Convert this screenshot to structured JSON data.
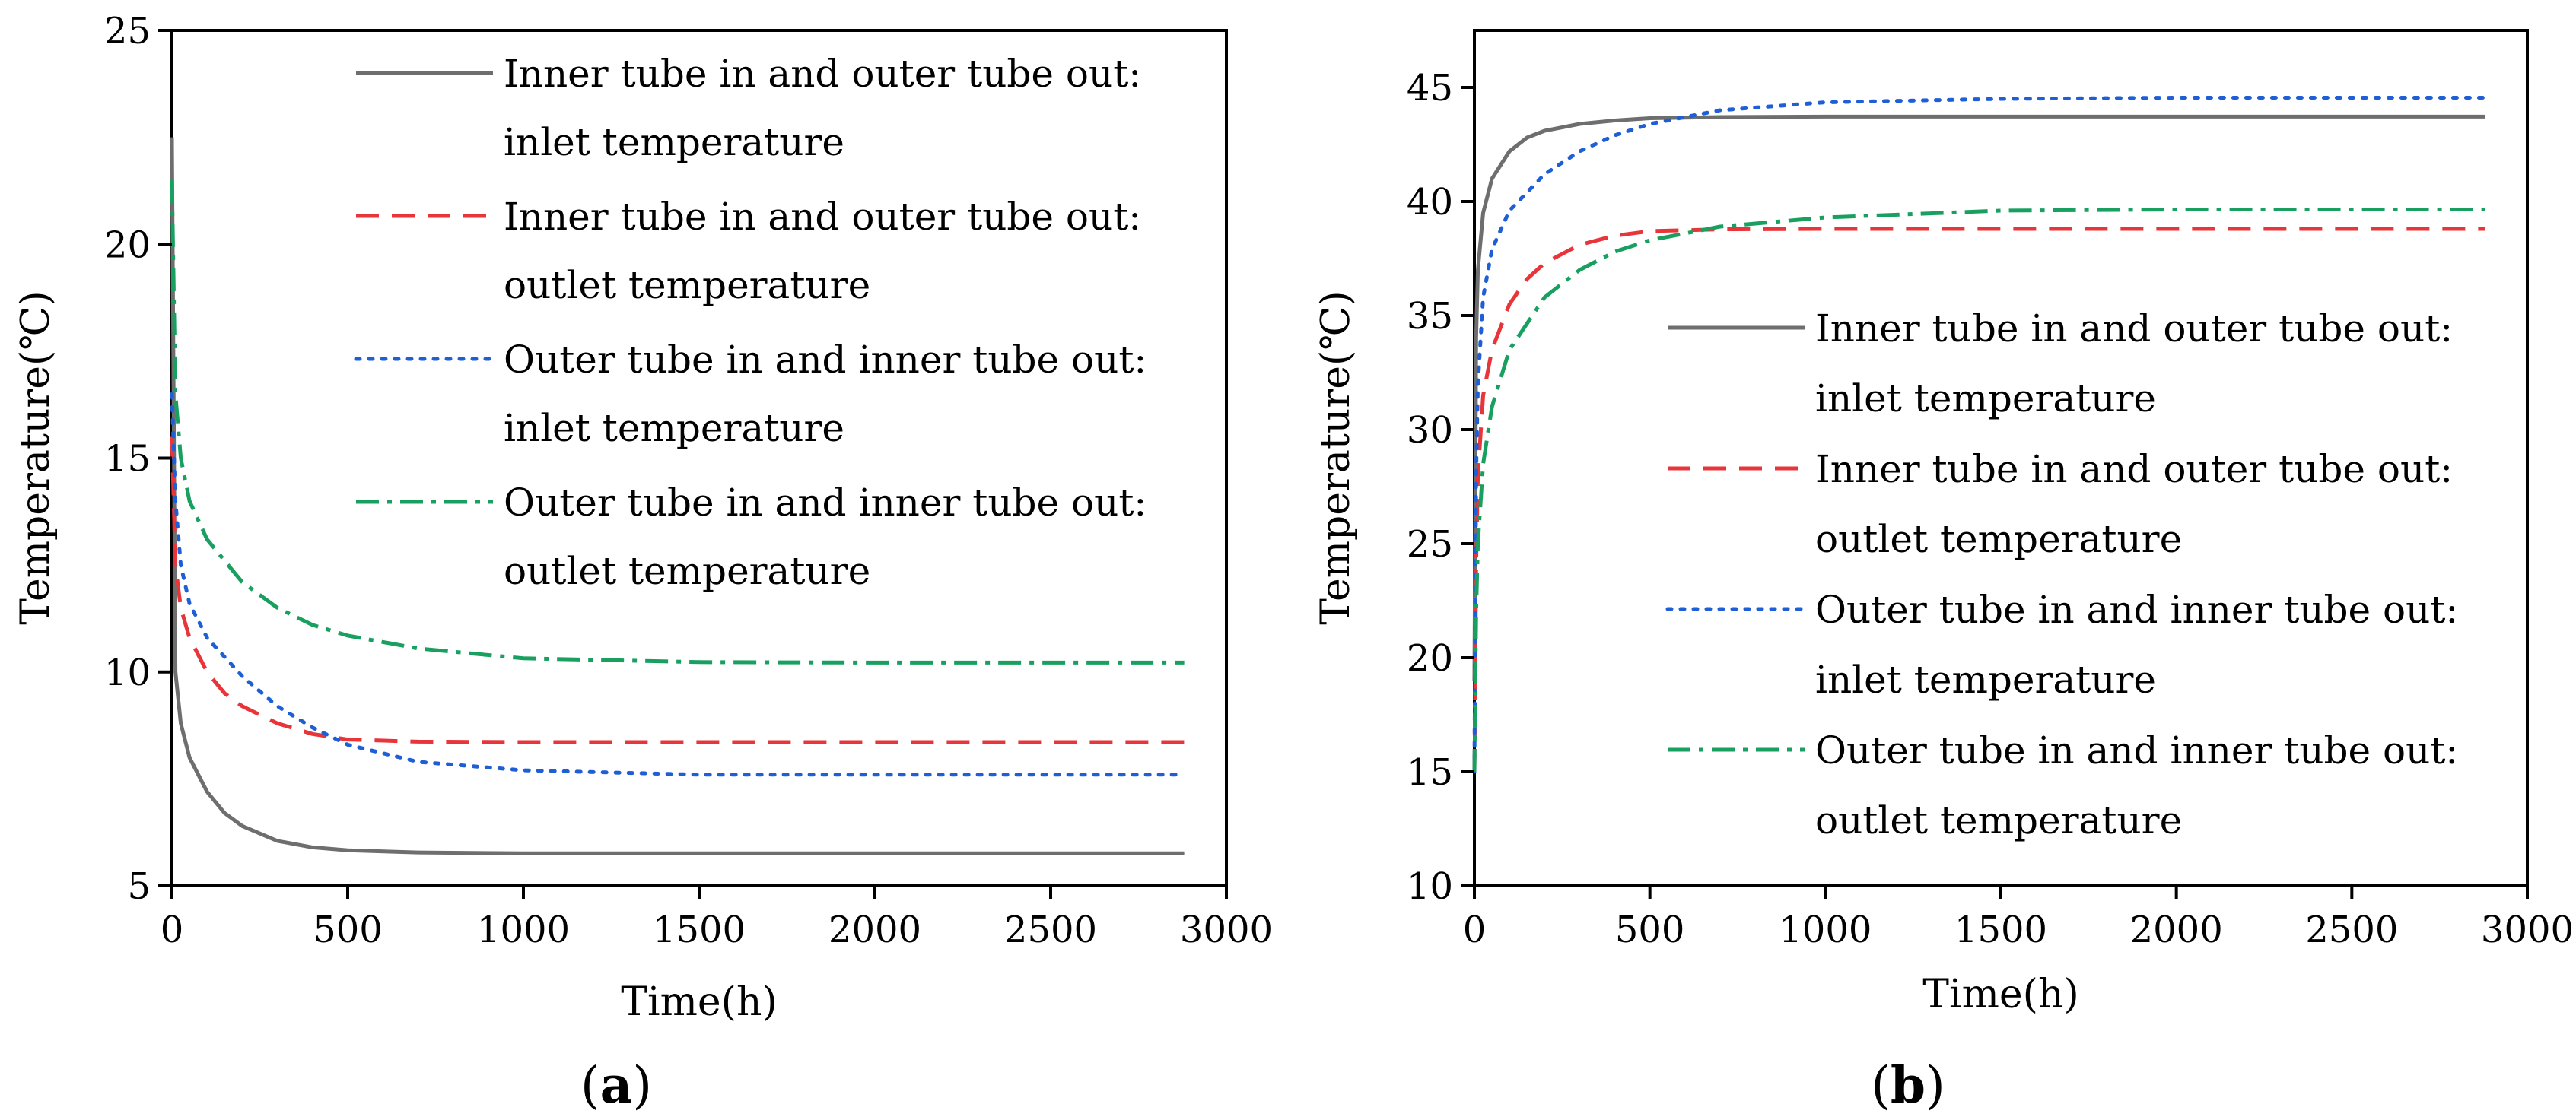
{
  "chart_data": [
    {
      "id": "a",
      "type": "line",
      "panel_label": "a",
      "xlabel": "Time(h)",
      "ylabel": "Temperature(℃)",
      "xlim": [
        0,
        3000
      ],
      "ylim": [
        5,
        25
      ],
      "xticks": [
        0,
        500,
        1000,
        1500,
        2000,
        2500,
        3000
      ],
      "yticks": [
        5,
        10,
        15,
        20,
        25
      ],
      "legend_position": "top-right",
      "series": [
        {
          "key": "s1",
          "line1": "Inner tube in and outer tube out:",
          "line2": "inlet temperature",
          "color": "#6e6e6e",
          "dash": "solid",
          "x": [
            0,
            10,
            25,
            50,
            100,
            150,
            200,
            300,
            400,
            500,
            700,
            1000,
            2000,
            2880
          ],
          "y": [
            22.5,
            10.0,
            8.8,
            8.0,
            7.2,
            6.7,
            6.4,
            6.05,
            5.9,
            5.83,
            5.78,
            5.76,
            5.76,
            5.76
          ]
        },
        {
          "key": "s2",
          "line1": "Inner tube in and outer tube out:",
          "line2": "outlet temperature",
          "color": "#e8353a",
          "dash": "dashed",
          "x": [
            0,
            10,
            25,
            50,
            100,
            150,
            200,
            300,
            400,
            500,
            700,
            1000,
            2000,
            2880
          ],
          "y": [
            15.5,
            12.5,
            11.5,
            10.8,
            10.0,
            9.5,
            9.2,
            8.8,
            8.55,
            8.42,
            8.37,
            8.36,
            8.36,
            8.36
          ]
        },
        {
          "key": "s3",
          "line1": "Outer tube in and inner tube out:",
          "line2": "inlet temperature",
          "color": "#1f5fd6",
          "dash": "dotted",
          "x": [
            0,
            10,
            25,
            50,
            100,
            200,
            300,
            400,
            500,
            700,
            1000,
            1500,
            2000,
            2880
          ],
          "y": [
            16.5,
            14.0,
            12.5,
            11.6,
            10.8,
            9.9,
            9.2,
            8.7,
            8.3,
            7.9,
            7.7,
            7.6,
            7.6,
            7.6
          ]
        },
        {
          "key": "s4",
          "line1": "Outer tube in and inner tube out:",
          "line2": "outlet temperature",
          "color": "#19a060",
          "dash": "dashdot",
          "x": [
            0,
            10,
            25,
            50,
            100,
            200,
            300,
            400,
            500,
            700,
            1000,
            1500,
            2000,
            2880
          ],
          "y": [
            21.5,
            16.5,
            15.0,
            14.0,
            13.1,
            12.1,
            11.5,
            11.1,
            10.85,
            10.55,
            10.32,
            10.23,
            10.22,
            10.22
          ]
        }
      ]
    },
    {
      "id": "b",
      "type": "line",
      "panel_label": "b",
      "xlabel": "Time(h)",
      "ylabel": "Temperature(℃)",
      "xlim": [
        0,
        3000
      ],
      "ylim": [
        10,
        47.5
      ],
      "xticks": [
        0,
        500,
        1000,
        1500,
        2000,
        2500,
        3000
      ],
      "yticks": [
        10,
        15,
        20,
        25,
        30,
        35,
        40,
        45
      ],
      "legend_position": "center-right",
      "series": [
        {
          "key": "s1",
          "line1": "Inner tube in and outer tube out:",
          "line2": "inlet temperature",
          "color": "#6e6e6e",
          "dash": "solid",
          "x": [
            0,
            5,
            10,
            25,
            50,
            100,
            150,
            200,
            300,
            400,
            500,
            700,
            1000,
            2000,
            2880
          ],
          "y": [
            19,
            34,
            37,
            39.5,
            41,
            42.2,
            42.8,
            43.1,
            43.4,
            43.55,
            43.65,
            43.7,
            43.72,
            43.72,
            43.72
          ]
        },
        {
          "key": "s2",
          "line1": "Inner tube in and outer tube out:",
          "line2": "outlet temperature",
          "color": "#e8353a",
          "dash": "dashed",
          "x": [
            0,
            5,
            10,
            25,
            50,
            100,
            150,
            200,
            300,
            400,
            500,
            700,
            1000,
            2000,
            2880
          ],
          "y": [
            15,
            24,
            28,
            31.5,
            33.5,
            35.5,
            36.6,
            37.3,
            38.1,
            38.5,
            38.7,
            38.78,
            38.8,
            38.8,
            38.8
          ]
        },
        {
          "key": "s3",
          "line1": "Outer tube in and inner tube out:",
          "line2": "inlet temperature",
          "color": "#1f5fd6",
          "dash": "dotted",
          "x": [
            0,
            5,
            10,
            25,
            50,
            100,
            200,
            300,
            400,
            500,
            700,
            1000,
            1500,
            2000,
            2880
          ],
          "y": [
            15,
            28,
            32,
            35.8,
            37.9,
            39.6,
            41.2,
            42.2,
            42.9,
            43.4,
            44.0,
            44.35,
            44.5,
            44.55,
            44.55
          ]
        },
        {
          "key": "s4",
          "line1": "Outer tube in and inner tube out:",
          "line2": "outlet temperature",
          "color": "#19a060",
          "dash": "dashdot",
          "x": [
            0,
            5,
            10,
            25,
            50,
            100,
            200,
            300,
            400,
            500,
            700,
            1000,
            1500,
            2000,
            2880
          ],
          "y": [
            15,
            22,
            25,
            28.5,
            31,
            33.5,
            35.8,
            37.0,
            37.8,
            38.3,
            38.9,
            39.3,
            39.6,
            39.65,
            39.65
          ]
        }
      ]
    }
  ]
}
